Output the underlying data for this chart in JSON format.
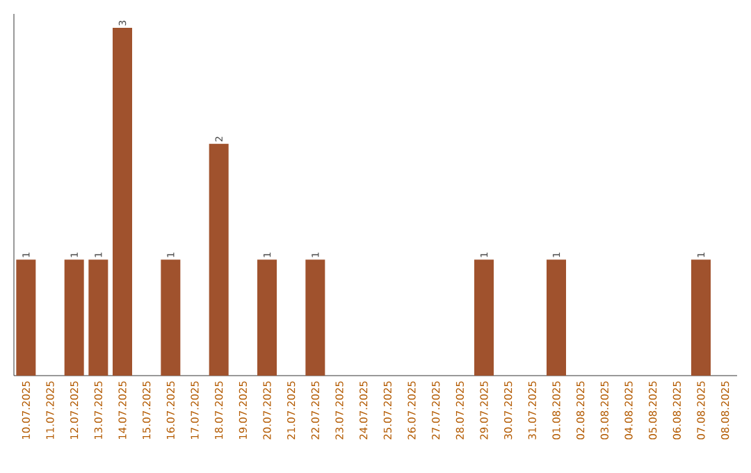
{
  "chart_data": {
    "type": "bar",
    "categories": [
      "10.07.2025",
      "11.07.2025",
      "12.07.2025",
      "13.07.2025",
      "14.07.2025",
      "15.07.2025",
      "16.07.2025",
      "17.07.2025",
      "18.07.2025",
      "19.07.2025",
      "20.07.2025",
      "21.07.2025",
      "22.07.2025",
      "23.07.2025",
      "24.07.2025",
      "25.07.2025",
      "26.07.2025",
      "27.07.2025",
      "28.07.2025",
      "29.07.2025",
      "30.07.2025",
      "31.07.2025",
      "01.08.2025",
      "02.08.2025",
      "03.08.2025",
      "04.08.2025",
      "05.08.2025",
      "06.08.2025",
      "07.08.2025",
      "08.08.2025"
    ],
    "values": [
      1,
      0,
      1,
      1,
      3,
      0,
      1,
      0,
      2,
      0,
      1,
      0,
      1,
      0,
      0,
      0,
      0,
      0,
      0,
      1,
      0,
      0,
      1,
      0,
      0,
      0,
      0,
      0,
      1,
      0
    ],
    "value_labels": [
      "1",
      null,
      "1",
      "1",
      "3",
      null,
      "1",
      null,
      "2",
      null,
      "1",
      null,
      "1",
      null,
      null,
      null,
      null,
      null,
      null,
      "1",
      null,
      null,
      "1",
      null,
      null,
      null,
      null,
      null,
      "1",
      null
    ],
    "color": "#a0522d"
  }
}
